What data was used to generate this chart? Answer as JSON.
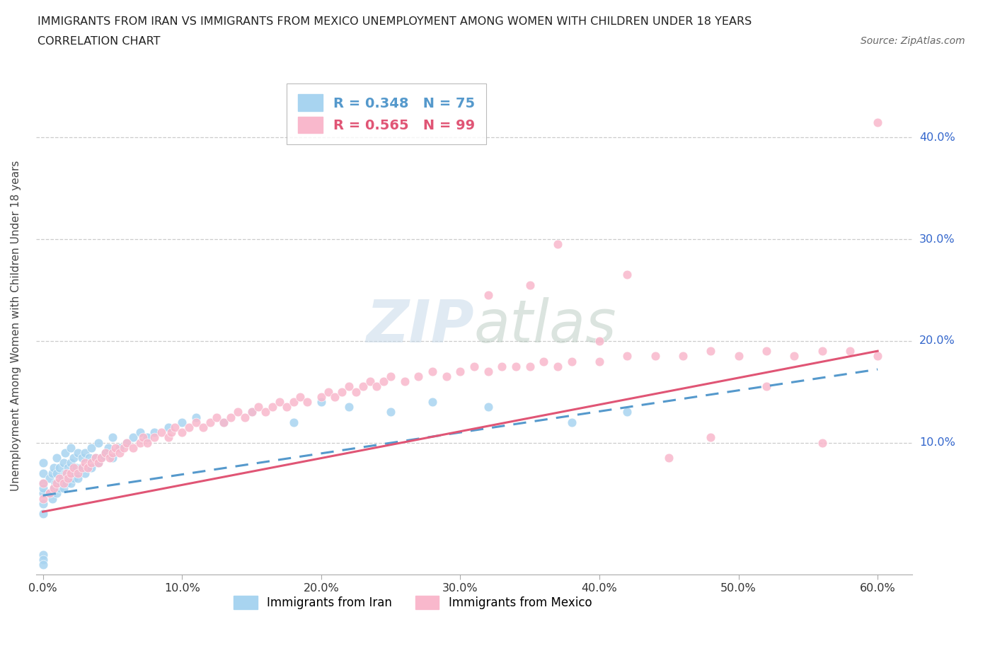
{
  "title_line1": "IMMIGRANTS FROM IRAN VS IMMIGRANTS FROM MEXICO UNEMPLOYMENT AMONG WOMEN WITH CHILDREN UNDER 18 YEARS",
  "title_line2": "CORRELATION CHART",
  "source": "Source: ZipAtlas.com",
  "ylabel": "Unemployment Among Women with Children Under 18 years",
  "xlim": [
    -0.005,
    0.625
  ],
  "ylim": [
    -0.03,
    0.46
  ],
  "xticks": [
    0.0,
    0.1,
    0.2,
    0.3,
    0.4,
    0.5,
    0.6
  ],
  "yticks": [
    0.0,
    0.1,
    0.2,
    0.3,
    0.4
  ],
  "iran_color": "#a8d4f0",
  "mexico_color": "#f9b8cc",
  "iran_line_color": "#5599cc",
  "mexico_line_color": "#e05575",
  "iran_R": 0.348,
  "iran_N": 75,
  "mexico_R": 0.565,
  "mexico_N": 99,
  "iran_trend_x0": 0.0,
  "iran_trend_y0": 0.048,
  "iran_trend_x1": 0.6,
  "iran_trend_y1": 0.172,
  "mexico_trend_x0": 0.0,
  "mexico_trend_y0": 0.032,
  "mexico_trend_x1": 0.6,
  "mexico_trend_y1": 0.19,
  "iran_x": [
    0.0,
    0.0,
    0.0,
    0.0,
    0.0,
    0.0,
    0.0,
    0.0,
    0.0,
    0.0,
    0.005,
    0.005,
    0.007,
    0.007,
    0.008,
    0.008,
    0.009,
    0.01,
    0.01,
    0.01,
    0.012,
    0.012,
    0.013,
    0.014,
    0.015,
    0.015,
    0.016,
    0.016,
    0.017,
    0.018,
    0.019,
    0.02,
    0.02,
    0.02,
    0.022,
    0.022,
    0.023,
    0.024,
    0.025,
    0.025,
    0.027,
    0.028,
    0.03,
    0.03,
    0.032,
    0.033,
    0.035,
    0.035,
    0.038,
    0.04,
    0.04,
    0.042,
    0.045,
    0.047,
    0.05,
    0.05,
    0.055,
    0.06,
    0.065,
    0.07,
    0.075,
    0.08,
    0.09,
    0.1,
    0.11,
    0.13,
    0.15,
    0.18,
    0.2,
    0.22,
    0.25,
    0.28,
    0.32,
    0.38,
    0.42
  ],
  "iran_y": [
    0.05,
    0.06,
    0.04,
    0.07,
    0.03,
    0.08,
    0.055,
    -0.01,
    -0.015,
    -0.02,
    0.05,
    0.065,
    0.045,
    0.07,
    0.055,
    0.075,
    0.06,
    0.05,
    0.07,
    0.085,
    0.055,
    0.075,
    0.06,
    0.065,
    0.055,
    0.08,
    0.07,
    0.09,
    0.06,
    0.075,
    0.065,
    0.06,
    0.08,
    0.095,
    0.065,
    0.085,
    0.07,
    0.075,
    0.065,
    0.09,
    0.075,
    0.085,
    0.07,
    0.09,
    0.075,
    0.085,
    0.075,
    0.095,
    0.085,
    0.08,
    0.1,
    0.085,
    0.09,
    0.095,
    0.085,
    0.105,
    0.095,
    0.1,
    0.105,
    0.11,
    0.105,
    0.11,
    0.115,
    0.12,
    0.125,
    0.12,
    0.13,
    0.12,
    0.14,
    0.135,
    0.13,
    0.14,
    0.135,
    0.12,
    0.13
  ],
  "mexico_x": [
    0.0,
    0.0,
    0.005,
    0.008,
    0.01,
    0.012,
    0.015,
    0.017,
    0.018,
    0.02,
    0.022,
    0.025,
    0.028,
    0.03,
    0.032,
    0.035,
    0.038,
    0.04,
    0.042,
    0.045,
    0.048,
    0.05,
    0.052,
    0.055,
    0.058,
    0.06,
    0.065,
    0.07,
    0.072,
    0.075,
    0.08,
    0.085,
    0.09,
    0.092,
    0.095,
    0.1,
    0.105,
    0.11,
    0.115,
    0.12,
    0.125,
    0.13,
    0.135,
    0.14,
    0.145,
    0.15,
    0.155,
    0.16,
    0.165,
    0.17,
    0.175,
    0.18,
    0.185,
    0.19,
    0.2,
    0.205,
    0.21,
    0.215,
    0.22,
    0.225,
    0.23,
    0.235,
    0.24,
    0.245,
    0.25,
    0.26,
    0.27,
    0.28,
    0.29,
    0.3,
    0.31,
    0.32,
    0.33,
    0.34,
    0.35,
    0.36,
    0.37,
    0.38,
    0.4,
    0.42,
    0.44,
    0.46,
    0.48,
    0.5,
    0.52,
    0.54,
    0.56,
    0.58,
    0.6,
    0.37,
    0.42,
    0.48,
    0.52,
    0.56,
    0.6,
    0.32,
    0.35,
    0.4,
    0.45
  ],
  "mexico_y": [
    0.045,
    0.06,
    0.05,
    0.055,
    0.06,
    0.065,
    0.06,
    0.07,
    0.065,
    0.07,
    0.075,
    0.07,
    0.075,
    0.08,
    0.075,
    0.08,
    0.085,
    0.08,
    0.085,
    0.09,
    0.085,
    0.09,
    0.095,
    0.09,
    0.095,
    0.1,
    0.095,
    0.1,
    0.105,
    0.1,
    0.105,
    0.11,
    0.105,
    0.11,
    0.115,
    0.11,
    0.115,
    0.12,
    0.115,
    0.12,
    0.125,
    0.12,
    0.125,
    0.13,
    0.125,
    0.13,
    0.135,
    0.13,
    0.135,
    0.14,
    0.135,
    0.14,
    0.145,
    0.14,
    0.145,
    0.15,
    0.145,
    0.15,
    0.155,
    0.15,
    0.155,
    0.16,
    0.155,
    0.16,
    0.165,
    0.16,
    0.165,
    0.17,
    0.165,
    0.17,
    0.175,
    0.17,
    0.175,
    0.175,
    0.175,
    0.18,
    0.175,
    0.18,
    0.18,
    0.185,
    0.185,
    0.185,
    0.19,
    0.185,
    0.19,
    0.185,
    0.19,
    0.19,
    0.185,
    0.295,
    0.265,
    0.105,
    0.155,
    0.1,
    0.415,
    0.245,
    0.255,
    0.2,
    0.085
  ]
}
